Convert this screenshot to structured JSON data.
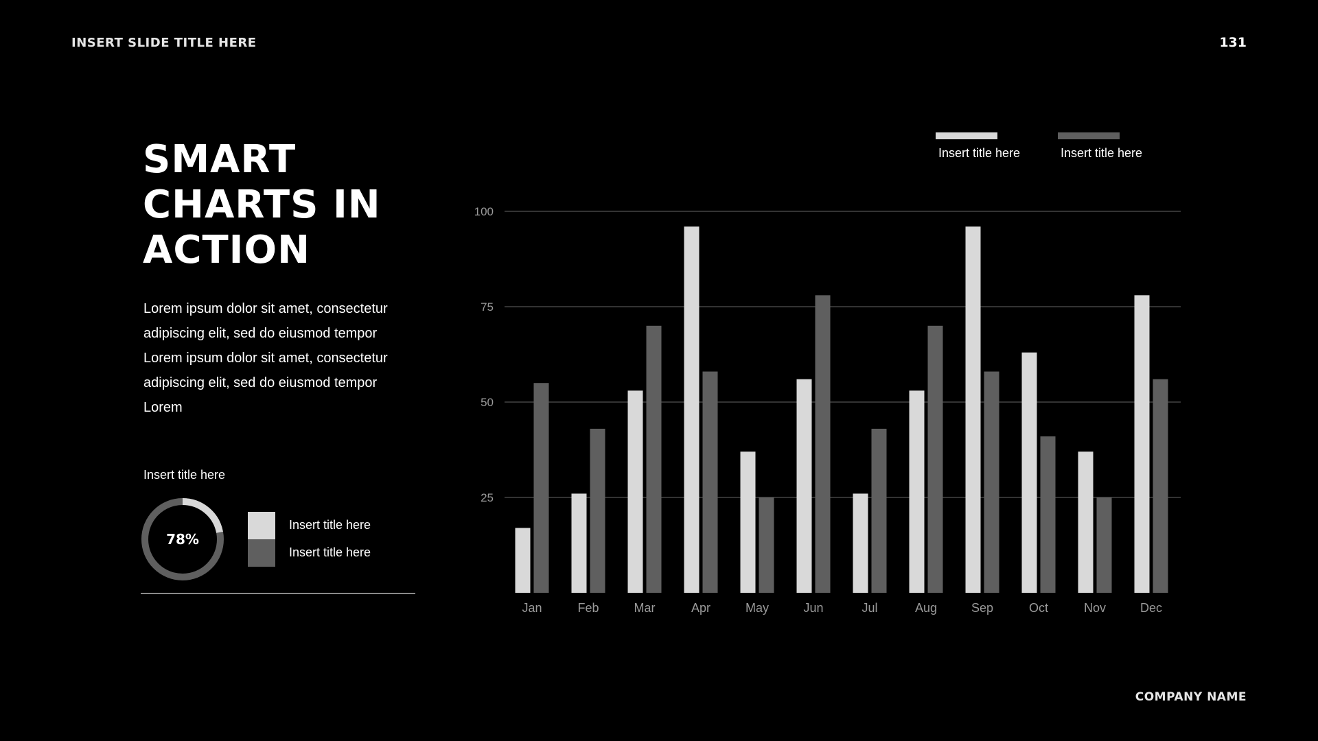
{
  "header": {
    "slide_title": "INSERT SLIDE TITLE HERE",
    "page_number": "131"
  },
  "footer": {
    "company_name": "COMPANY NAME"
  },
  "headline": {
    "lines": [
      "SMART",
      "CHARTS IN",
      "ACTION"
    ]
  },
  "body_text": "Lorem ipsum dolor sit amet, consectetur adipiscing elit, sed do eiusmod tempor Lorem ipsum dolor sit amet, consectetur adipiscing elit, sed do eiusmod tempor Lorem",
  "kpi": {
    "title": "Insert title here",
    "value_label": "78%",
    "percent": 78,
    "legend": [
      {
        "label": "Insert title here",
        "color": "#d9d9d9"
      },
      {
        "label": "Insert title here",
        "color": "#5f5f5f"
      }
    ]
  },
  "colors": {
    "series1": "#d9d9d9",
    "series2": "#5f5f5f",
    "grid": "#666666",
    "tick": "#9a9a9a"
  },
  "chart_data": {
    "type": "bar",
    "categories": [
      "Jan",
      "Feb",
      "Mar",
      "Apr",
      "May",
      "Jun",
      "Jul",
      "Aug",
      "Sep",
      "Oct",
      "Nov",
      "Dec"
    ],
    "series": [
      {
        "name": "Insert title here",
        "color": "#d9d9d9",
        "values": [
          17,
          26,
          53,
          96,
          37,
          56,
          26,
          53,
          96,
          63,
          37,
          78
        ]
      },
      {
        "name": "Insert title here",
        "color": "#5f5f5f",
        "values": [
          55,
          43,
          70,
          58,
          25,
          78,
          43,
          70,
          58,
          41,
          25,
          56
        ]
      }
    ],
    "yticks": [
      25,
      50,
      75,
      100
    ],
    "ylim": [
      0,
      100
    ],
    "grid": true,
    "legend_position": "top-right"
  }
}
